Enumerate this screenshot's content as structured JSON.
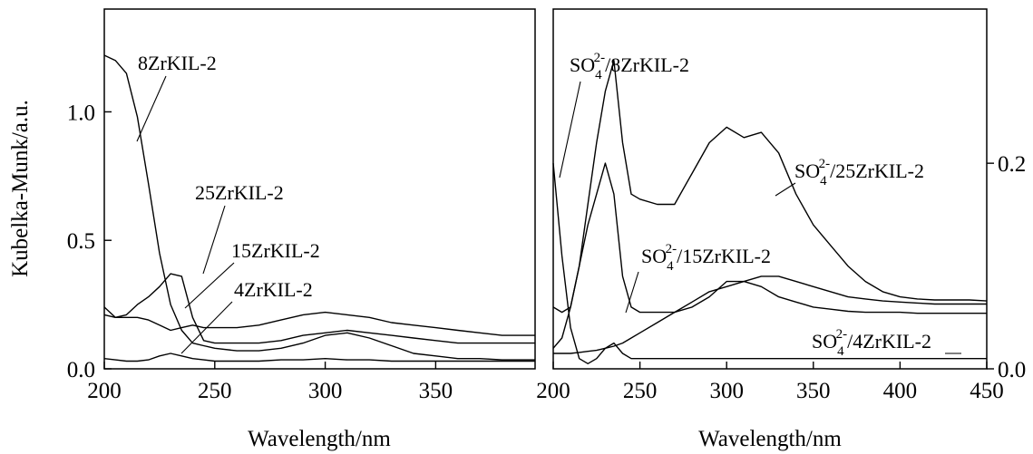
{
  "chart_data": [
    {
      "type": "line",
      "ylabel": "Kubelka-Munk/a.u.",
      "xlabel": "Wavelength/nm",
      "xlim": [
        200,
        395
      ],
      "ylim": [
        0,
        1.4
      ],
      "xticks": [
        200,
        250,
        300,
        350
      ],
      "yticks": [
        0.0,
        0.5,
        1.0
      ],
      "ytick_labels": [
        "0.0",
        "0.5",
        "1.0"
      ],
      "grid": false,
      "series": [
        {
          "name": "8ZrKIL-2",
          "x": [
            200,
            205,
            210,
            215,
            220,
            225,
            230,
            235,
            240,
            245,
            250,
            260,
            270,
            280,
            290,
            300,
            310,
            320,
            330,
            340,
            350,
            360,
            370,
            380,
            390,
            395
          ],
          "y": [
            1.22,
            1.2,
            1.15,
            0.98,
            0.72,
            0.45,
            0.25,
            0.15,
            0.1,
            0.09,
            0.08,
            0.07,
            0.07,
            0.08,
            0.1,
            0.13,
            0.14,
            0.12,
            0.09,
            0.06,
            0.05,
            0.04,
            0.04,
            0.035,
            0.035,
            0.035
          ]
        },
        {
          "name": "25ZrKIL-2",
          "x": [
            200,
            205,
            210,
            215,
            220,
            225,
            230,
            235,
            240,
            245,
            250,
            260,
            270,
            280,
            290,
            300,
            310,
            320,
            330,
            340,
            350,
            360,
            370,
            380,
            390,
            395
          ],
          "y": [
            0.24,
            0.2,
            0.21,
            0.25,
            0.28,
            0.32,
            0.37,
            0.36,
            0.2,
            0.11,
            0.1,
            0.1,
            0.1,
            0.11,
            0.13,
            0.14,
            0.15,
            0.14,
            0.13,
            0.12,
            0.11,
            0.1,
            0.1,
            0.1,
            0.1,
            0.1
          ]
        },
        {
          "name": "15ZrKIL-2",
          "x": [
            200,
            205,
            210,
            215,
            220,
            225,
            230,
            235,
            240,
            245,
            250,
            260,
            270,
            280,
            290,
            300,
            310,
            320,
            330,
            340,
            350,
            360,
            370,
            380,
            390,
            395
          ],
          "y": [
            0.21,
            0.2,
            0.2,
            0.2,
            0.19,
            0.17,
            0.15,
            0.16,
            0.17,
            0.16,
            0.16,
            0.16,
            0.17,
            0.19,
            0.21,
            0.22,
            0.21,
            0.2,
            0.18,
            0.17,
            0.16,
            0.15,
            0.14,
            0.13,
            0.13,
            0.13
          ]
        },
        {
          "name": "4ZrKIL-2",
          "x": [
            200,
            205,
            210,
            215,
            220,
            225,
            230,
            235,
            240,
            245,
            250,
            260,
            270,
            280,
            290,
            300,
            310,
            320,
            330,
            340,
            350,
            360,
            370,
            380,
            390,
            395
          ],
          "y": [
            0.04,
            0.035,
            0.03,
            0.03,
            0.035,
            0.05,
            0.06,
            0.05,
            0.04,
            0.035,
            0.03,
            0.03,
            0.03,
            0.035,
            0.035,
            0.04,
            0.035,
            0.035,
            0.03,
            0.03,
            0.03,
            0.03,
            0.03,
            0.03,
            0.03,
            0.03
          ]
        }
      ],
      "annotations": [
        "8ZrKIL-2",
        "25ZrKIL-2",
        "15ZrKIL-2",
        "4ZrKIL-2"
      ]
    },
    {
      "type": "line",
      "xlabel": "Wavelength/nm",
      "xlim": [
        200,
        450
      ],
      "ylim": [
        0,
        0.35
      ],
      "xticks": [
        200,
        250,
        300,
        350,
        400,
        450
      ],
      "yticks": [
        0.0,
        0.2
      ],
      "ytick_labels": [
        "0.0",
        "0.2"
      ],
      "y_axis_side": "right",
      "grid": false,
      "series": [
        {
          "name": "SO4 2-/8ZrKIL-2",
          "x": [
            200,
            205,
            210,
            215,
            220,
            225,
            230,
            235,
            240,
            245,
            250,
            260,
            270,
            280,
            290,
            300,
            310,
            320,
            330,
            340,
            350,
            360,
            370,
            380,
            390,
            400,
            410,
            420,
            430,
            440,
            450
          ],
          "y": [
            0.2,
            0.11,
            0.04,
            0.01,
            0.005,
            0.01,
            0.02,
            0.025,
            0.015,
            0.01,
            0.01,
            0.01,
            0.01,
            0.01,
            0.01,
            0.01,
            0.01,
            0.01,
            0.01,
            0.01,
            0.01,
            0.01,
            0.01,
            0.01,
            0.01,
            0.01,
            0.01,
            0.01,
            0.01,
            0.01,
            0.01
          ]
        },
        {
          "name": "SO4 2-/25ZrKIL-2",
          "x": [
            200,
            205,
            210,
            215,
            220,
            225,
            230,
            235,
            240,
            245,
            250,
            260,
            270,
            280,
            290,
            300,
            310,
            320,
            330,
            340,
            350,
            360,
            370,
            380,
            390,
            400,
            410,
            420,
            430,
            440,
            450
          ],
          "y": [
            0.06,
            0.055,
            0.06,
            0.1,
            0.16,
            0.22,
            0.27,
            0.3,
            0.22,
            0.17,
            0.165,
            0.16,
            0.16,
            0.19,
            0.22,
            0.235,
            0.225,
            0.23,
            0.21,
            0.17,
            0.14,
            0.12,
            0.1,
            0.085,
            0.075,
            0.07,
            0.068,
            0.067,
            0.067,
            0.067,
            0.066
          ]
        },
        {
          "name": "SO4 2-/15ZrKIL-2",
          "x": [
            200,
            205,
            210,
            215,
            220,
            225,
            230,
            235,
            240,
            245,
            250,
            260,
            270,
            280,
            290,
            300,
            310,
            320,
            330,
            340,
            350,
            360,
            370,
            380,
            390,
            400,
            410,
            420,
            430,
            440,
            450
          ],
          "y": [
            0.02,
            0.03,
            0.06,
            0.1,
            0.14,
            0.17,
            0.2,
            0.17,
            0.09,
            0.06,
            0.055,
            0.055,
            0.055,
            0.06,
            0.07,
            0.085,
            0.085,
            0.08,
            0.07,
            0.065,
            0.06,
            0.058,
            0.056,
            0.055,
            0.055,
            0.055,
            0.054,
            0.054,
            0.054,
            0.054,
            0.054
          ]
        },
        {
          "name": "SO4 2-/4ZrKIL-2",
          "x": [
            200,
            205,
            210,
            215,
            220,
            225,
            230,
            235,
            240,
            245,
            250,
            260,
            270,
            280,
            290,
            300,
            310,
            320,
            330,
            340,
            350,
            360,
            370,
            380,
            390,
            400,
            410,
            420,
            430,
            440,
            450
          ],
          "y": [
            0.015,
            0.015,
            0.015,
            0.016,
            0.017,
            0.018,
            0.02,
            0.022,
            0.025,
            0.03,
            0.035,
            0.045,
            0.055,
            0.065,
            0.075,
            0.08,
            0.085,
            0.09,
            0.09,
            0.085,
            0.08,
            0.075,
            0.07,
            0.068,
            0.066,
            0.065,
            0.064,
            0.063,
            0.063,
            0.063,
            0.063
          ]
        }
      ],
      "annotations": [
        {
          "base": "SO",
          "sub": "4",
          "sup": "2-",
          "tail": "/8ZrKIL-2"
        },
        {
          "base": "SO",
          "sub": "4",
          "sup": "2-",
          "tail": "/25ZrKIL-2"
        },
        {
          "base": "SO",
          "sub": "4",
          "sup": "2-",
          "tail": "/15ZrKIL-2"
        },
        {
          "base": "SO",
          "sub": "4",
          "sup": "2-",
          "tail": "/4ZrKIL-2"
        }
      ]
    }
  ]
}
